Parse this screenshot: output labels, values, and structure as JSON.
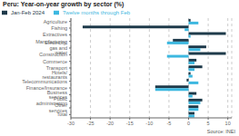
{
  "chart_data": {
    "type": "bar",
    "orientation": "horizontal",
    "title": "Peru: Year-on-year growth by sector (%)",
    "categories": [
      "Agriculture",
      "Fishing",
      "Extractives",
      "Manufacturing",
      "Electricity, gas and water",
      "Construction",
      "Commerce",
      "Transport",
      "Hotels/ restaurants",
      "Telecommunications",
      "Finance/Insurance",
      "Business services",
      "Public administration",
      "Other services",
      "Total"
    ],
    "series": [
      {
        "name": "Jan-Feb 2024",
        "color": "#1e3a4a",
        "values": [
          0.5,
          -27.0,
          9.5,
          -4.0,
          4.5,
          9.5,
          2.0,
          3.5,
          0.5,
          -0.5,
          -8.5,
          2.0,
          3.5,
          2.5,
          1.5
        ]
      },
      {
        "name": "Twelve months through Feb",
        "color": "#3db8e0",
        "values": [
          2.5,
          -1.0,
          0.5,
          -5.5,
          3.0,
          -5.5,
          1.5,
          1.5,
          1.0,
          2.5,
          -8.5,
          1.0,
          3.0,
          2.5,
          1.5
        ]
      }
    ],
    "xlim": [
      -30,
      11
    ],
    "xticks": [
      -30,
      -25,
      -20,
      -15,
      -10,
      -5,
      0,
      5,
      10
    ],
    "grid": true,
    "legend": "top",
    "annotations": [
      "Source: INEI"
    ]
  }
}
